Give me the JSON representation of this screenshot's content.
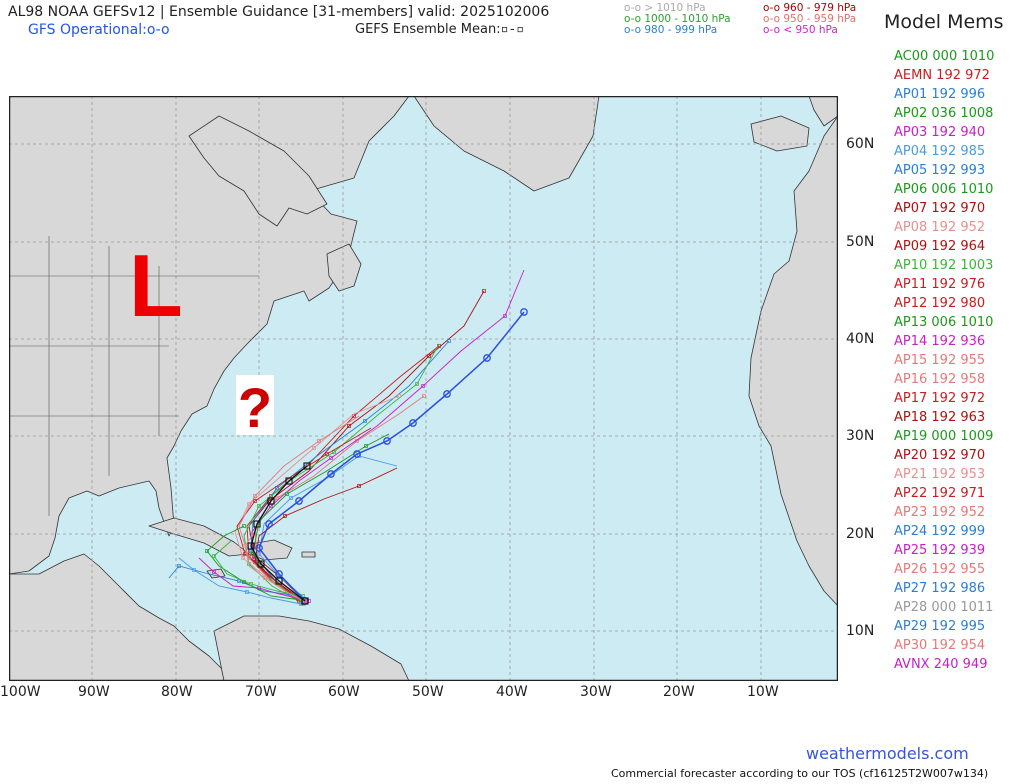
{
  "header": {
    "title": "AL98 NOAA GEFSv12 | Ensemble Guidance [31-members] valid: 2025102006",
    "gfs_operational": "GFS Operational:",
    "gefs_mean": "GEFS Ensemble Mean:"
  },
  "pressure_legend": [
    {
      "label": "o-o > 1010 hPa",
      "color": "#aaaaaa"
    },
    {
      "label": "o-o 1000 - 1010 hPa",
      "color": "#2ca02c"
    },
    {
      "label": "o-o 980 - 999 hPa",
      "color": "#2a7fd4"
    },
    {
      "label": "o-o 960 - 979 hPa",
      "color": "#b00000"
    },
    {
      "label": "o-o 950 - 959 hPa",
      "color": "#e0706a"
    },
    {
      "label": "o-o < 950 hPa",
      "color": "#d020d0"
    }
  ],
  "legend_title": "Model Mems",
  "members": [
    {
      "label": "AC00 000 1010",
      "color": "#1a9a1a"
    },
    {
      "label": "AEMN 192 972",
      "color": "#c81e1e"
    },
    {
      "label": "AP01 192 996",
      "color": "#2a7fd4"
    },
    {
      "label": "AP02 036 1008",
      "color": "#1a9a1a"
    },
    {
      "label": "AP03 192 940",
      "color": "#c81ec8"
    },
    {
      "label": "AP04 192 985",
      "color": "#4a9ae0"
    },
    {
      "label": "AP05 192 993",
      "color": "#2a7fd4"
    },
    {
      "label": "AP06 006 1010",
      "color": "#1a9a1a"
    },
    {
      "label": "AP07 192 970",
      "color": "#b01010"
    },
    {
      "label": "AP08 192 952",
      "color": "#e89090"
    },
    {
      "label": "AP09 192 964",
      "color": "#b01010"
    },
    {
      "label": "AP10 192 1003",
      "color": "#3cb43c"
    },
    {
      "label": "AP11 192 976",
      "color": "#c81e1e"
    },
    {
      "label": "AP12 192 980",
      "color": "#c81e1e"
    },
    {
      "label": "AP13 006 1010",
      "color": "#1a9a1a"
    },
    {
      "label": "AP14 192 936",
      "color": "#c81ec8"
    },
    {
      "label": "AP15 192 955",
      "color": "#e87878"
    },
    {
      "label": "AP16 192 958",
      "color": "#e87878"
    },
    {
      "label": "AP17 192 972",
      "color": "#c81e1e"
    },
    {
      "label": "AP18 192 963",
      "color": "#b01010"
    },
    {
      "label": "AP19 000 1009",
      "color": "#1a9a1a"
    },
    {
      "label": "AP20 192 970",
      "color": "#b01010"
    },
    {
      "label": "AP21 192 953",
      "color": "#e89090"
    },
    {
      "label": "AP22 192 971",
      "color": "#c81e1e"
    },
    {
      "label": "AP23 192 952",
      "color": "#e87878"
    },
    {
      "label": "AP24 192 999",
      "color": "#2a7fd4"
    },
    {
      "label": "AP25 192 939",
      "color": "#c81ec8"
    },
    {
      "label": "AP26 192 955",
      "color": "#e87878"
    },
    {
      "label": "AP27 192 986",
      "color": "#2a7fd4"
    },
    {
      "label": "AP28 000 1011",
      "color": "#999999"
    },
    {
      "label": "AP29 192 995",
      "color": "#2a7fd4"
    },
    {
      "label": "AP30 192 954",
      "color": "#e87878"
    },
    {
      "label": "AVNX 240 949",
      "color": "#c81ec8"
    }
  ],
  "axes": {
    "lat_labels": [
      "60N",
      "50N",
      "40N",
      "30N",
      "20N",
      "10N"
    ],
    "lon_labels": [
      "100W",
      "90W",
      "80W",
      "70W",
      "60W",
      "50W",
      "40W",
      "30W",
      "20W",
      "10W"
    ]
  },
  "annotations": {
    "low_marker": "L",
    "question_mark": "?"
  },
  "colors": {
    "ocean": "#cdebf3",
    "land": "#d8d8d8",
    "low_marker": "#ee0000",
    "question_mark": "#cc0000",
    "gfs_track": "#2a4fe0",
    "mean_track": "#111111"
  },
  "footer": {
    "credit": "weathermodels.com",
    "tos": "Commercial forecaster according to our TOS (cf16125T2W007w134)"
  }
}
